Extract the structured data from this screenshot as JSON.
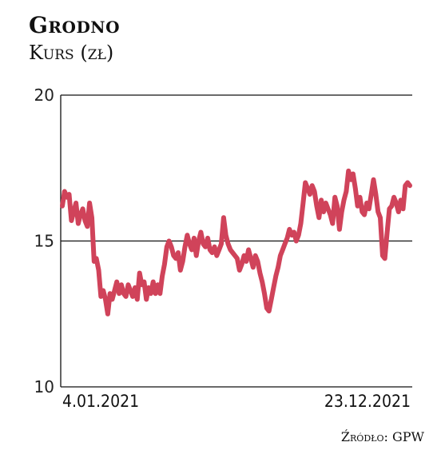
{
  "header": {
    "title": "Grodno",
    "subtitle": "Kurs (zł)"
  },
  "source": "Źródło: GPW",
  "colors": {
    "line": "#d0435a",
    "axis": "#111111",
    "text": "#111111"
  },
  "chart_data": {
    "type": "line",
    "title": "Grodno",
    "subtitle": "Kurs (zł)",
    "xlabel": "",
    "ylabel": "",
    "ylim": [
      10,
      20
    ],
    "yticks": [
      10,
      15,
      20
    ],
    "x_range": [
      "2021-01-04",
      "2021-12-23"
    ],
    "x_tick_labels": [
      "4.01.2021",
      "23.12.2021"
    ],
    "grid": "horizontal line at 15 only",
    "series": [
      {
        "values": [
          16.2,
          16.7,
          16.5,
          16.6,
          15.7,
          16.0,
          16.3,
          15.6,
          15.9,
          16.1,
          15.7,
          15.5,
          16.3,
          15.8,
          14.3,
          14.4,
          14.0,
          13.1,
          13.3,
          13.0,
          12.5,
          13.2,
          13.0,
          13.3,
          13.6,
          13.2,
          13.5,
          13.2,
          13.1,
          13.5,
          13.3,
          13.1,
          13.4,
          13.0,
          13.9,
          13.5,
          13.6,
          13.0,
          13.4,
          13.2,
          13.6,
          13.2,
          13.5,
          13.2,
          13.8,
          14.2,
          14.8,
          15.0,
          14.8,
          14.5,
          14.4,
          14.6,
          14.0,
          14.3,
          14.8,
          15.2,
          14.9,
          14.7,
          15.1,
          14.5,
          15.0,
          15.3,
          14.9,
          14.8,
          15.1,
          14.7,
          14.6,
          14.8,
          14.5,
          14.7,
          14.9,
          15.8,
          15.2,
          14.9,
          14.7,
          14.6,
          14.5,
          14.4,
          14.0,
          14.2,
          14.5,
          14.3,
          14.7,
          14.4,
          14.1,
          14.5,
          14.3,
          13.9,
          13.6,
          13.2,
          12.7,
          12.6,
          13.0,
          13.4,
          13.8,
          14.1,
          14.5,
          14.7,
          14.9,
          15.1,
          15.4,
          15.2,
          15.3,
          15.0,
          15.2,
          15.6,
          16.3,
          17.0,
          16.8,
          16.6,
          16.9,
          16.7,
          16.2,
          15.8,
          16.4,
          16.0,
          16.3,
          16.1,
          15.9,
          15.6,
          16.5,
          16.2,
          15.4,
          16.0,
          16.4,
          16.7,
          17.4,
          17.1,
          17.3,
          16.8,
          16.2,
          16.5,
          16.0,
          15.9,
          16.3,
          16.1,
          16.6,
          17.1,
          16.6,
          16.0,
          15.8,
          14.5,
          14.4,
          15.3,
          16.1,
          16.2,
          16.5,
          16.3,
          16.0,
          16.4,
          16.1,
          16.9,
          17.0,
          16.9
        ]
      }
    ]
  }
}
